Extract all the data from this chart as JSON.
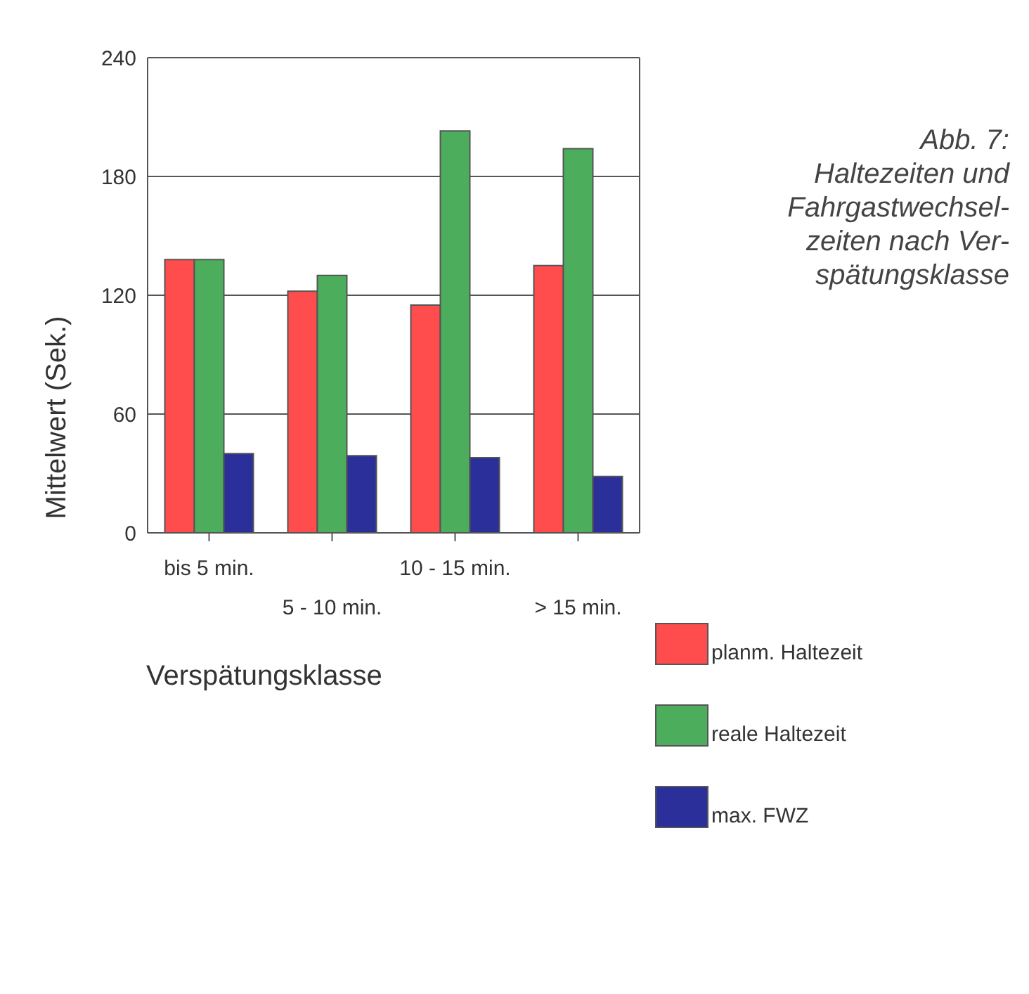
{
  "chart_data": {
    "type": "bar",
    "title": "Abb. 7:\nHaltezeiten und\nFahrgastwechsel-\nzeiten nach Ver-\nspätungsklasse",
    "xlabel": "Verspätungsklasse",
    "ylabel": "Mittelwert (Sek.)",
    "categories": [
      "bis 5 min.",
      "5 - 10 min.",
      "10 - 15 min.",
      "> 15 min."
    ],
    "series": [
      {
        "name": "planm. Haltezeit",
        "color": "#ff4d4d",
        "values": [
          138,
          122,
          115,
          135
        ]
      },
      {
        "name": "reale Haltezeit",
        "color": "#4cae5c",
        "values": [
          138,
          130,
          203,
          194
        ]
      },
      {
        "name": "max. FWZ",
        "color": "#2b2f9a",
        "values": [
          40,
          39,
          38,
          28.5
        ]
      }
    ],
    "ylim": [
      0,
      240
    ],
    "yticks": [
      0,
      60,
      120,
      180,
      240
    ],
    "grid": "y",
    "legend": "right"
  }
}
